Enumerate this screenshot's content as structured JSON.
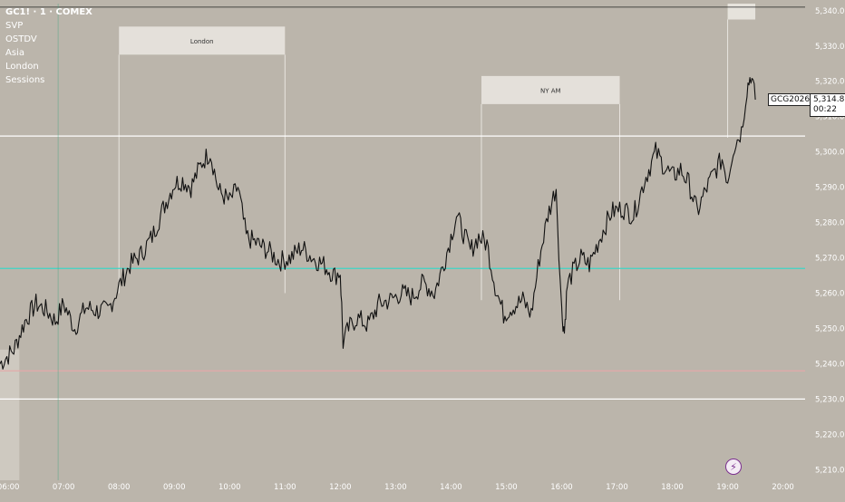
{
  "legend": {
    "symbol": "GC1! · 1 · COMEX",
    "indicators": [
      "SVP",
      "OSTDV",
      "Asia",
      "London",
      "Sessions"
    ]
  },
  "price_scale_tag": {
    "symbol": "GCG2026",
    "price": "5,314.8",
    "countdown": "00:22"
  },
  "sessions": [
    {
      "label": "London"
    },
    {
      "label": "NY AM"
    }
  ],
  "colors": {
    "background": "#bbb5ab",
    "candles": "#111111",
    "level_white": "#ffffff",
    "level_cyan": "#3fd6c6",
    "level_pink": "#e3aaaa",
    "session_box": "#e6e3dc"
  },
  "chart_data": {
    "type": "line",
    "title": "GC1! · 1 · COMEX",
    "xlabel": "",
    "ylabel": "",
    "x_tick_labels": [
      "06:00",
      "07:00",
      "08:00",
      "09:00",
      "10:00",
      "11:00",
      "12:00",
      "13:00",
      "14:00",
      "15:00",
      "16:00",
      "17:00",
      "18:00",
      "19:00",
      "20:00"
    ],
    "x_ticks_hours": [
      6,
      7,
      8,
      9,
      10,
      11,
      12,
      13,
      14,
      15,
      16,
      17,
      18,
      19,
      20
    ],
    "y_tick_labels": [
      "5,210.0",
      "5,220.0",
      "5,230.0",
      "5,240.0",
      "5,250.0",
      "5,260.0",
      "5,270.0",
      "5,280.0",
      "5,290.0",
      "5,300.0",
      "5,310.0",
      "5,320.0",
      "5,330.0",
      "5,340.0"
    ],
    "y_ticks": [
      5210,
      5220,
      5230,
      5240,
      5250,
      5260,
      5270,
      5280,
      5290,
      5300,
      5310,
      5320,
      5330,
      5340
    ],
    "xlim_hours": [
      5.85,
      20.4
    ],
    "ylim": [
      5207,
      5342
    ],
    "grid": false,
    "levels": [
      {
        "price": 5341.0,
        "color": "#222222"
      },
      {
        "price": 5304.5,
        "color": "#ffffff"
      },
      {
        "price": 5267.0,
        "color": "#3fd6c6"
      },
      {
        "price": 5238.0,
        "color": "#e3aaaa"
      },
      {
        "price": 5230.0,
        "color": "#ffffff"
      }
    ],
    "session_boxes": [
      {
        "label": "London",
        "start_hour": 8.0,
        "end_hour": 11.0,
        "high": 5335.5,
        "low": 5260
      },
      {
        "label": "NY AM",
        "start_hour": 14.55,
        "end_hour": 17.05,
        "high": 5321.5,
        "low": 5258
      }
    ],
    "series": [
      {
        "x_hours": [
          5.85,
          6.1,
          6.3,
          6.5,
          6.7,
          6.85,
          7.0,
          7.2,
          7.4,
          7.6,
          7.8,
          8.0,
          8.2,
          8.4,
          8.6,
          8.8,
          9.0,
          9.15,
          9.3,
          9.5,
          9.65,
          9.8,
          10.0,
          10.15,
          10.3,
          10.5,
          10.7,
          10.9,
          11.1,
          11.3,
          11.5,
          11.7,
          11.9,
          12.0,
          12.05,
          12.15,
          12.3,
          12.5,
          12.7,
          12.9,
          13.1,
          13.3,
          13.5,
          13.7,
          13.9,
          14.1,
          14.2,
          14.35,
          14.5,
          14.65,
          14.8,
          14.95,
          15.1,
          15.3,
          15.45,
          15.6,
          15.75,
          15.9,
          16.0,
          16.05,
          16.1,
          16.2,
          16.35,
          16.5,
          16.7,
          16.9,
          17.1,
          17.3,
          17.5,
          17.7,
          17.85,
          18.0,
          18.15,
          18.3,
          18.45,
          18.6,
          18.75,
          18.9,
          19.0,
          19.1,
          19.25,
          19.35,
          19.42,
          19.5
        ],
        "values": [
          5240,
          5244,
          5252,
          5257,
          5255,
          5252,
          5257,
          5250,
          5256,
          5255,
          5255,
          5262,
          5268,
          5271,
          5276,
          5284,
          5291,
          5292,
          5290,
          5297,
          5300,
          5289,
          5286,
          5290,
          5276,
          5274,
          5272,
          5269,
          5270,
          5273,
          5270,
          5268,
          5265,
          5266,
          5246,
          5250,
          5253,
          5251,
          5257,
          5258,
          5260,
          5259,
          5263,
          5260,
          5270,
          5282,
          5278,
          5272,
          5276,
          5274,
          5262,
          5254,
          5256,
          5258,
          5254,
          5270,
          5282,
          5290,
          5255,
          5249,
          5262,
          5266,
          5270,
          5268,
          5276,
          5283,
          5284,
          5282,
          5292,
          5300,
          5296,
          5293,
          5295,
          5291,
          5283,
          5289,
          5294,
          5298,
          5292,
          5301,
          5306,
          5318,
          5322,
          5314.8
        ]
      }
    ]
  }
}
